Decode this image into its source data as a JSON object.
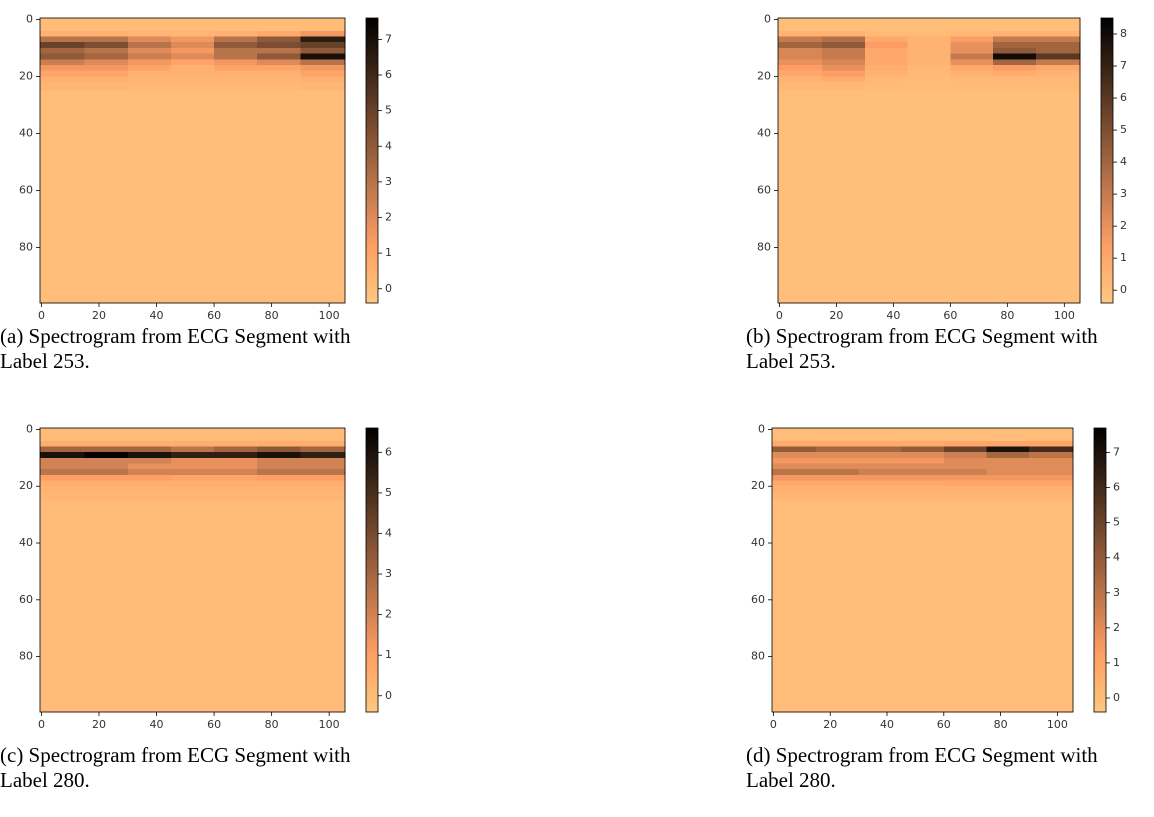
{
  "chart_data": [
    {
      "type": "heatmap",
      "colormap": "copper_r",
      "caption": "(a) Spectrogram from ECG Segment with Label 253.",
      "xlim": [
        -0.5,
        105.5
      ],
      "ylim": [
        99.5,
        -0.5
      ],
      "xticks": [
        0,
        20,
        40,
        60,
        80,
        100
      ],
      "yticks": [
        0,
        20,
        40,
        60,
        80
      ],
      "zlim": [
        -0.4,
        7.6
      ],
      "zticks": [
        0,
        1,
        2,
        3,
        4,
        5,
        6,
        7
      ],
      "x_edges": [
        -0.5,
        15,
        30,
        45,
        60,
        75,
        90,
        105.5
      ],
      "y_edges": [
        -0.5,
        4,
        6,
        8,
        10,
        12,
        14,
        16,
        18,
        20,
        22,
        25,
        99.5
      ],
      "z": [
        [
          0,
          0,
          0,
          0,
          0,
          0,
          0
        ],
        [
          0.5,
          0.5,
          0.3,
          0.3,
          0.5,
          0.8,
          1.5
        ],
        [
          3,
          3,
          2,
          1.5,
          3,
          4,
          6.5
        ],
        [
          5,
          4.5,
          3,
          2,
          4,
          4.5,
          5
        ],
        [
          3.5,
          3,
          2,
          1.5,
          3,
          3,
          4
        ],
        [
          4,
          3.5,
          2.5,
          2,
          3,
          4,
          7
        ],
        [
          2.5,
          2,
          1.5,
          1,
          1.5,
          2,
          3
        ],
        [
          1.5,
          1.5,
          1,
          0.5,
          1,
          1,
          1.5
        ],
        [
          1,
          1,
          0.5,
          0.5,
          0.5,
          0.5,
          1
        ],
        [
          0.5,
          0.5,
          0.3,
          0.3,
          0.3,
          0.3,
          0.5
        ],
        [
          0.3,
          0.3,
          0.2,
          0.2,
          0.2,
          0.2,
          0.3
        ],
        [
          0,
          0,
          0,
          0,
          0,
          0,
          0
        ]
      ]
    },
    {
      "type": "heatmap",
      "colormap": "copper_r",
      "caption": "(b) Spectrogram from ECG Segment with Label 253.",
      "xlim": [
        -0.5,
        105.5
      ],
      "ylim": [
        99.5,
        -0.5
      ],
      "xticks": [
        0,
        20,
        40,
        60,
        80,
        100
      ],
      "yticks": [
        0,
        20,
        40,
        60,
        80
      ],
      "zlim": [
        -0.4,
        8.5
      ],
      "zticks": [
        0,
        1,
        2,
        3,
        4,
        5,
        6,
        7,
        8
      ],
      "x_edges": [
        -0.5,
        15,
        30,
        45,
        60,
        75,
        90,
        105.5
      ],
      "y_edges": [
        -0.5,
        4,
        6,
        8,
        10,
        12,
        14,
        16,
        18,
        20,
        22,
        25,
        99.5
      ],
      "z": [
        [
          0,
          0,
          0,
          0,
          0,
          0,
          0
        ],
        [
          0.5,
          0.5,
          0.2,
          0.2,
          0.3,
          0.5,
          0.5
        ],
        [
          3,
          3.5,
          1,
          0.5,
          1.5,
          3,
          3
        ],
        [
          4,
          4.5,
          1.5,
          0.5,
          2,
          4,
          4
        ],
        [
          2.5,
          3,
          1,
          0.5,
          2,
          4.5,
          4
        ],
        [
          2.5,
          3,
          1,
          0.5,
          3,
          8,
          6
        ],
        [
          2,
          2.5,
          1,
          0.5,
          2,
          4,
          3
        ],
        [
          1.5,
          2,
          0.8,
          0.3,
          1,
          1.5,
          1
        ],
        [
          1,
          1.5,
          0.5,
          0.3,
          0.5,
          0.8,
          0.5
        ],
        [
          0.5,
          0.8,
          0.3,
          0.2,
          0.3,
          0.3,
          0.3
        ],
        [
          0.3,
          0.3,
          0.2,
          0.1,
          0.2,
          0.2,
          0.2
        ],
        [
          0,
          0,
          0,
          0,
          0,
          0,
          0
        ]
      ]
    },
    {
      "type": "heatmap",
      "colormap": "copper_r",
      "caption": "(c) Spectrogram from ECG Segment with Label 280.",
      "xlim": [
        -0.5,
        105.5
      ],
      "ylim": [
        99.5,
        -0.5
      ],
      "xticks": [
        0,
        20,
        40,
        60,
        80,
        100
      ],
      "yticks": [
        0,
        20,
        40,
        60,
        80
      ],
      "zlim": [
        -0.4,
        6.6
      ],
      "zticks": [
        0,
        1,
        2,
        3,
        4,
        5,
        6
      ],
      "x_edges": [
        -0.5,
        15,
        30,
        45,
        60,
        75,
        90,
        105.5
      ],
      "y_edges": [
        -0.5,
        4,
        6,
        8,
        10,
        12,
        14,
        16,
        18,
        20,
        22,
        25,
        99.5
      ],
      "z": [
        [
          0,
          0,
          0,
          0,
          0,
          0,
          0
        ],
        [
          0.5,
          0.5,
          0.5,
          0.5,
          0.5,
          0.5,
          0.5
        ],
        [
          3,
          3,
          3,
          2.5,
          3,
          3.5,
          3
        ],
        [
          6,
          6.5,
          6,
          5.5,
          5.5,
          6,
          5.5
        ],
        [
          2,
          2,
          2,
          1.5,
          1.5,
          2,
          2
        ],
        [
          2,
          2,
          1.5,
          1.5,
          1.5,
          2,
          2
        ],
        [
          2.5,
          2.5,
          2,
          2,
          2,
          2.5,
          2.5
        ],
        [
          1,
          1,
          1,
          0.8,
          0.8,
          1,
          1
        ],
        [
          0.5,
          0.5,
          0.5,
          0.5,
          0.5,
          0.5,
          0.5
        ],
        [
          0.3,
          0.3,
          0.3,
          0.3,
          0.3,
          0.3,
          0.3
        ],
        [
          0.2,
          0.2,
          0.2,
          0.2,
          0.2,
          0.2,
          0.2
        ],
        [
          0,
          0,
          0,
          0,
          0,
          0,
          0
        ]
      ]
    },
    {
      "type": "heatmap",
      "colormap": "copper_r",
      "caption": "(d) Spectrogram from ECG Segment with Label 280.",
      "xlim": [
        -0.5,
        105.5
      ],
      "ylim": [
        99.5,
        -0.5
      ],
      "xticks": [
        0,
        20,
        40,
        60,
        80,
        100
      ],
      "yticks": [
        0,
        20,
        40,
        60,
        80
      ],
      "zlim": [
        -0.4,
        7.7
      ],
      "zticks": [
        0,
        1,
        2,
        3,
        4,
        5,
        6,
        7
      ],
      "x_edges": [
        -0.5,
        15,
        30,
        45,
        60,
        75,
        90,
        105.5
      ],
      "y_edges": [
        -0.5,
        4,
        6,
        8,
        10,
        12,
        14,
        16,
        18,
        20,
        22,
        25,
        99.5
      ],
      "z": [
        [
          0,
          0,
          0,
          0,
          0,
          0,
          0
        ],
        [
          0.8,
          0.8,
          0.8,
          0.8,
          1,
          1,
          1
        ],
        [
          4,
          3.5,
          3.5,
          4,
          5,
          7,
          6
        ],
        [
          2,
          2,
          2,
          2,
          2.5,
          3.5,
          3
        ],
        [
          1.5,
          1.5,
          1.5,
          1.5,
          2,
          2,
          2
        ],
        [
          2,
          2,
          2,
          2,
          2,
          2,
          2
        ],
        [
          3,
          3,
          2.5,
          2.5,
          2.5,
          2,
          2
        ],
        [
          1.5,
          1.5,
          1.5,
          1.5,
          1.5,
          1.5,
          1.5
        ],
        [
          0.8,
          0.8,
          0.8,
          0.8,
          1,
          1,
          1
        ],
        [
          0.5,
          0.5,
          0.5,
          0.5,
          0.5,
          0.5,
          0.5
        ],
        [
          0.3,
          0.3,
          0.3,
          0.3,
          0.3,
          0.3,
          0.3
        ],
        [
          0,
          0,
          0,
          0,
          0,
          0,
          0
        ]
      ]
    }
  ]
}
